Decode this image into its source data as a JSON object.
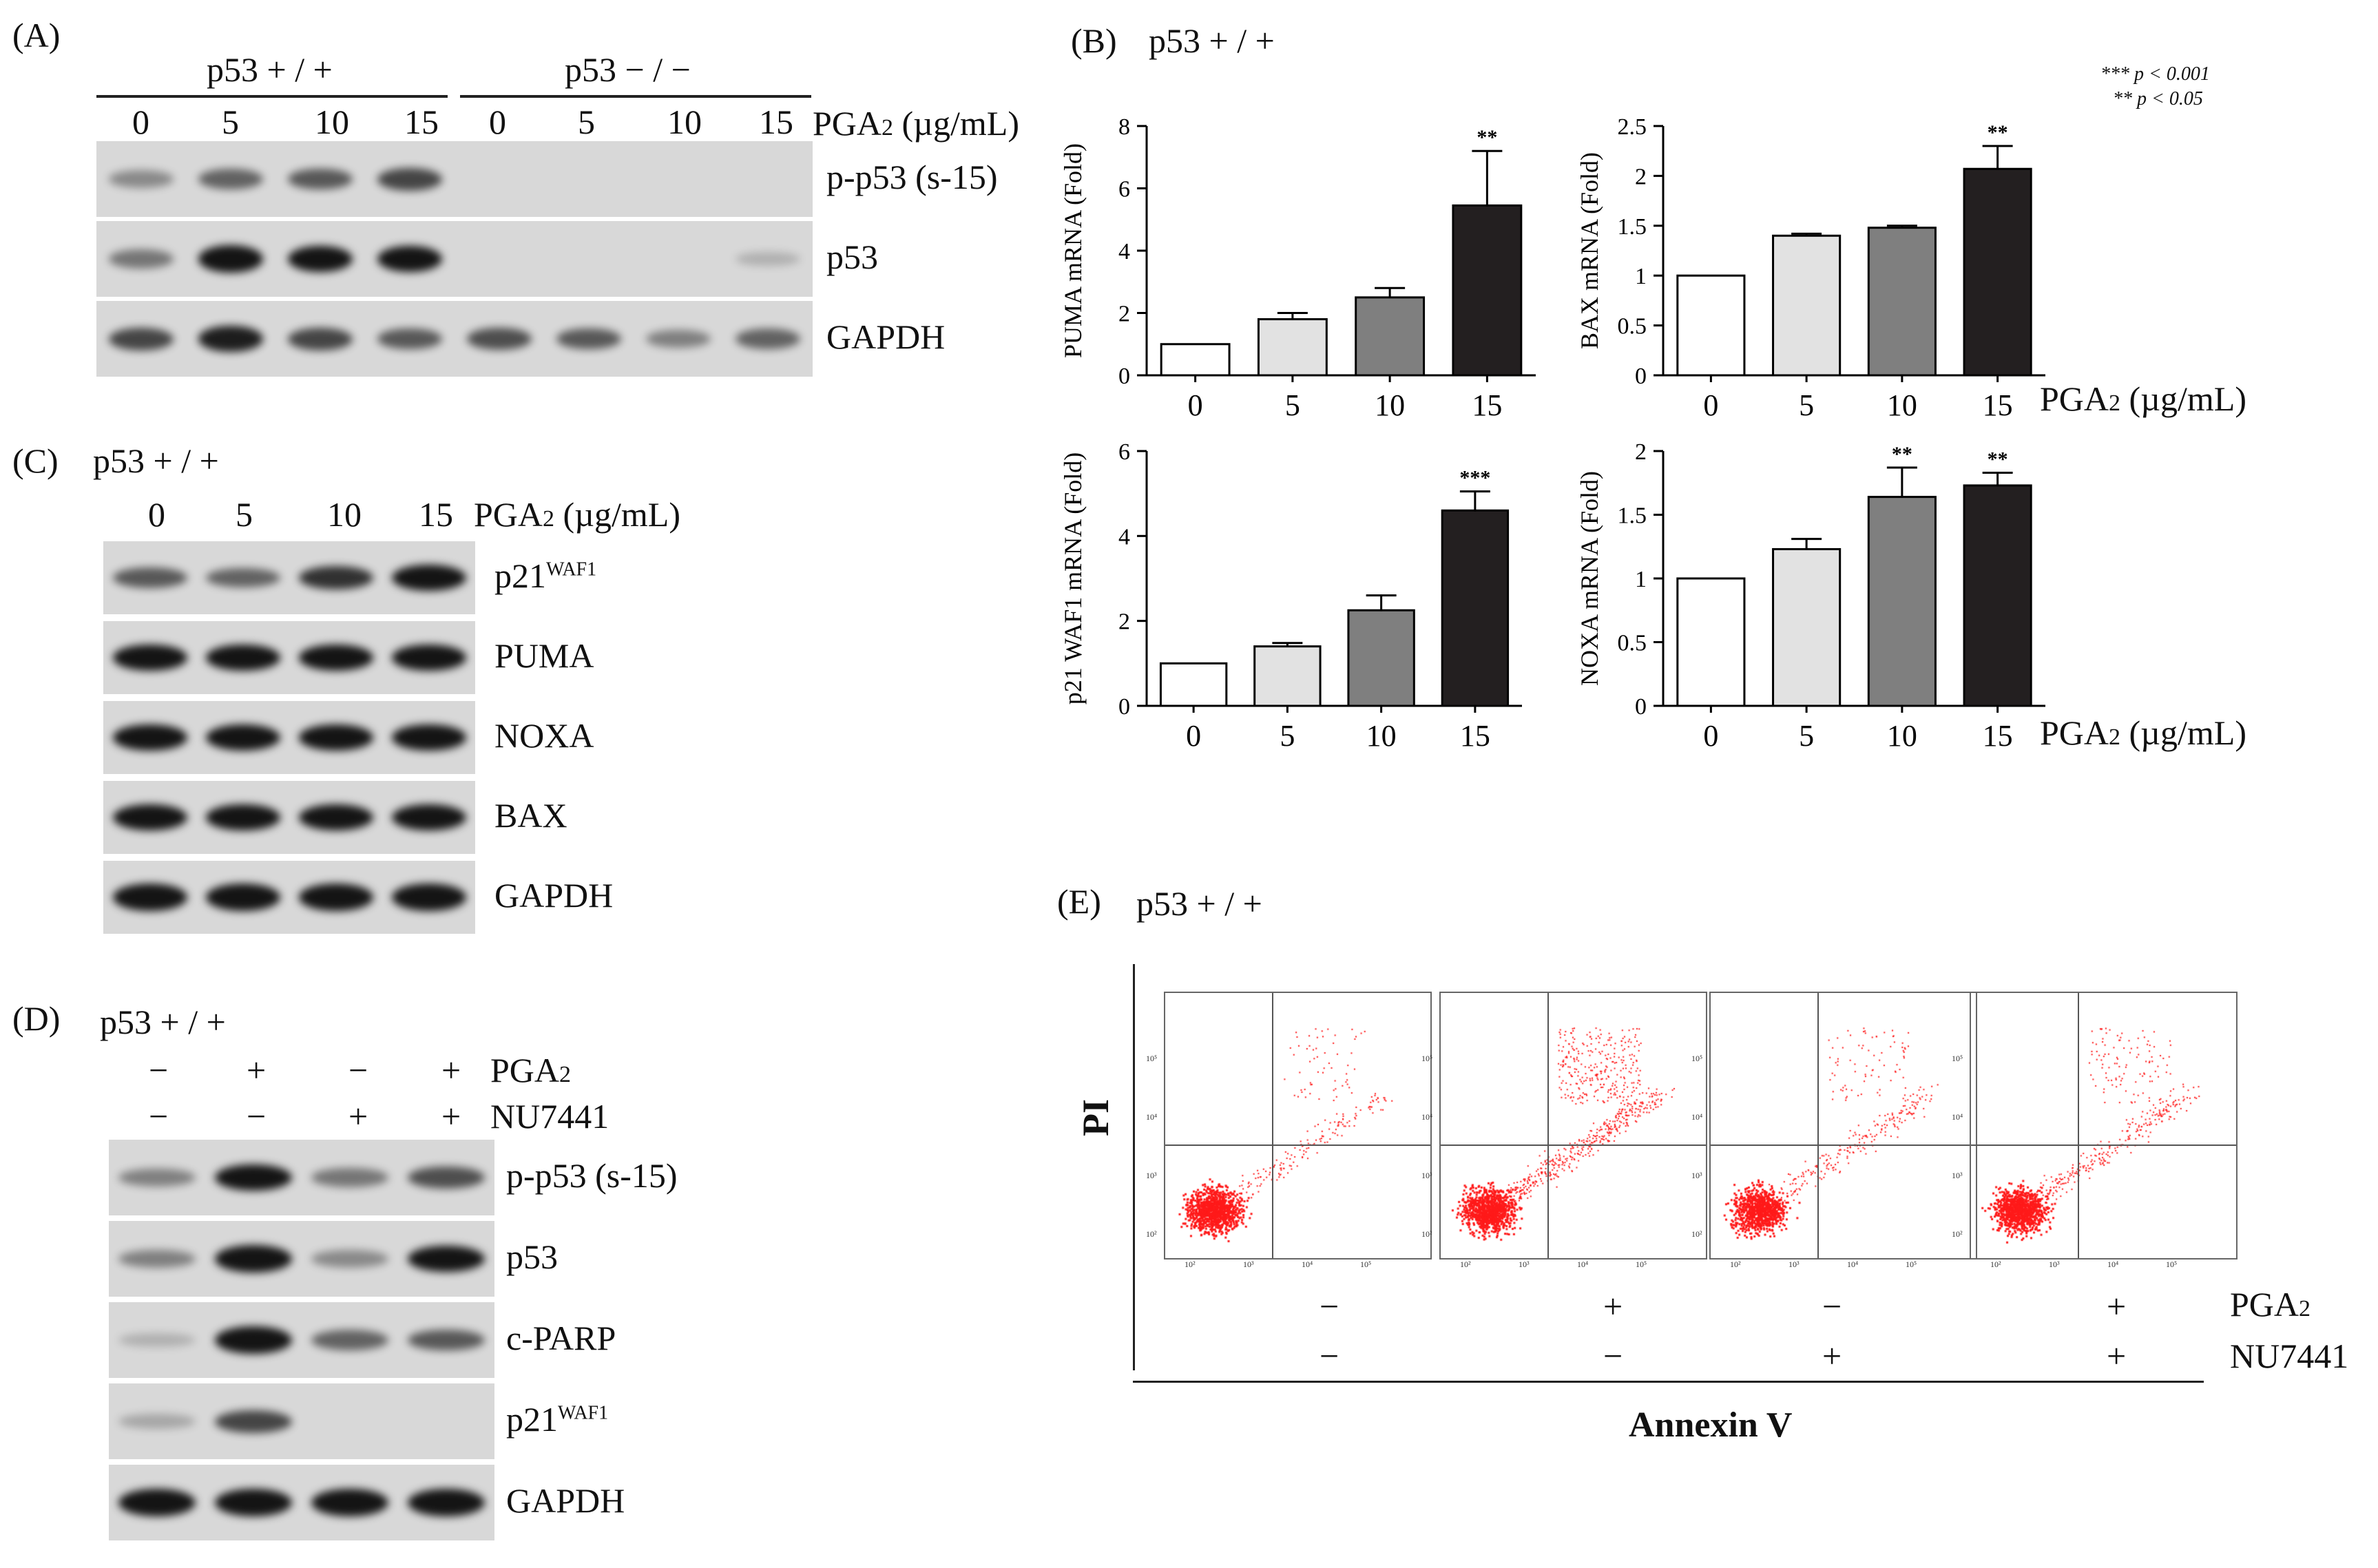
{
  "panelA": {
    "letter": "(A)",
    "group1": "p53  + / +",
    "group2": "p53  − / −",
    "doses": [
      "0",
      "5",
      "10",
      "15",
      "0",
      "5",
      "10",
      "15"
    ],
    "treatment_prefix": "PGA",
    "treatment_sub": "2",
    "treatment_unit": " (µg/mL)",
    "rows": [
      "p-p53 (s-15)",
      "p53",
      "GAPDH"
    ],
    "bands": [
      [
        0.25,
        0.45,
        0.5,
        0.6,
        0,
        0,
        0,
        0
      ],
      [
        0.35,
        0.9,
        0.85,
        0.85,
        0,
        0,
        0,
        0.05
      ],
      [
        0.6,
        0.8,
        0.6,
        0.5,
        0.55,
        0.5,
        0.3,
        0.45
      ]
    ]
  },
  "panelB": {
    "letter": "(B)",
    "subtitle": "p53  + / +",
    "legend": [
      "*** p < 0.001",
      "** p < 0.05"
    ],
    "treatment_label": "PGA₂ (µg/mL)",
    "x_title": "PGA",
    "x_sub": "2",
    "x_unit": " (µg/mL)"
  },
  "chart_data": [
    {
      "type": "bar",
      "title": "",
      "ylabel": "PUMA mRNA (Fold)",
      "categories": [
        "0",
        "5",
        "10",
        "15"
      ],
      "values": [
        1,
        1.8,
        2.5,
        5.45
      ],
      "errors": [
        0,
        0.2,
        0.3,
        1.75
      ],
      "ylim": [
        0,
        8
      ],
      "yticks": [
        "0",
        "2",
        "4",
        "6",
        "8"
      ],
      "annotations": [
        "",
        "",
        "",
        "**"
      ]
    },
    {
      "type": "bar",
      "title": "",
      "ylabel": "BAX mRNA (Fold)",
      "categories": [
        "0",
        "5",
        "10",
        "15"
      ],
      "values": [
        1,
        1.4,
        1.48,
        2.07
      ],
      "errors": [
        0,
        0.02,
        0.02,
        0.23
      ],
      "ylim": [
        0,
        2.5
      ],
      "yticks": [
        "0",
        "0.5",
        "1",
        "1.5",
        "2",
        "2.5"
      ],
      "annotations": [
        "",
        "",
        "",
        "**"
      ]
    },
    {
      "type": "bar",
      "title": "",
      "ylabel": "p21 WAF1 mRNA (Fold)",
      "categories": [
        "0",
        "5",
        "10",
        "15"
      ],
      "values": [
        1,
        1.4,
        2.25,
        4.6
      ],
      "errors": [
        0,
        0.08,
        0.35,
        0.45
      ],
      "ylim": [
        0,
        6
      ],
      "yticks": [
        "0",
        "2",
        "4",
        "6"
      ],
      "annotations": [
        "",
        "",
        "",
        "***"
      ]
    },
    {
      "type": "bar",
      "title": "",
      "ylabel": "NOXA mRNA (Fold)",
      "categories": [
        "0",
        "5",
        "10",
        "15"
      ],
      "values": [
        1,
        1.23,
        1.64,
        1.73
      ],
      "errors": [
        0,
        0.08,
        0.23,
        0.1
      ],
      "ylim": [
        0,
        2
      ],
      "yticks": [
        "0",
        "0.5",
        "1",
        "1.5",
        "2"
      ],
      "annotations": [
        "",
        "",
        "**",
        "**"
      ]
    }
  ],
  "panelC": {
    "letter": "(C)",
    "subtitle": "p53  + / +",
    "doses": [
      "0",
      "5",
      "10",
      "15"
    ],
    "treatment_prefix": "PGA",
    "treatment_sub": "2",
    "treatment_unit": " (µg/mL)",
    "rows": [
      "p21",
      "PUMA",
      "NOXA",
      "BAX",
      "GAPDH"
    ],
    "row_sup": [
      "WAF1",
      "",
      "",
      "",
      ""
    ],
    "bands": [
      [
        0.5,
        0.45,
        0.7,
        0.9
      ],
      [
        0.85,
        0.85,
        0.85,
        0.85
      ],
      [
        0.85,
        0.9,
        0.85,
        0.85
      ],
      [
        0.9,
        0.85,
        0.9,
        0.9
      ],
      [
        0.95,
        0.95,
        0.95,
        0.95
      ]
    ]
  },
  "panelD": {
    "letter": "(D)",
    "subtitle": "p53  + / +",
    "pga_signs": [
      "−",
      "+",
      "−",
      "+"
    ],
    "nu_signs": [
      "−",
      "−",
      "+",
      "+"
    ],
    "pga_prefix": "PGA",
    "pga_sub": "2",
    "nu_label": "NU7441",
    "rows": [
      "p-p53 (s-15)",
      "p53",
      "c-PARP",
      "p21",
      "GAPDH"
    ],
    "row_sup": [
      "",
      "",
      "",
      "WAF1",
      ""
    ],
    "bands": [
      [
        0.3,
        0.85,
        0.35,
        0.55
      ],
      [
        0.3,
        0.9,
        0.25,
        0.85
      ],
      [
        0.05,
        0.95,
        0.45,
        0.5
      ],
      [
        0.1,
        0.6,
        0.0,
        0.0
      ],
      [
        0.95,
        0.95,
        0.95,
        0.95
      ]
    ]
  },
  "panelE": {
    "letter": "(E)",
    "subtitle": "p53  + / +",
    "y_title": "PI",
    "x_title": "Annexin V",
    "pga_signs": [
      "−",
      "+",
      "−",
      "+"
    ],
    "nu_signs": [
      "−",
      "−",
      "+",
      "+"
    ],
    "pga_prefix": "PGA",
    "pga_sub": "2",
    "nu_label": "NU7441",
    "tick_labels": [
      "10²",
      "10³",
      "10⁴",
      "10⁵"
    ],
    "dot_color": "#ff1a1a"
  }
}
